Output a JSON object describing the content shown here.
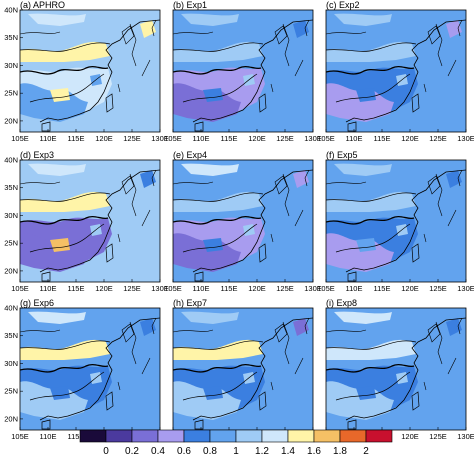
{
  "chart_data": {
    "type": "heatmap",
    "panels": [
      {
        "label": "(a) APHRO"
      },
      {
        "label": "(b) Exp1"
      },
      {
        "label": "(c) Exp2"
      },
      {
        "label": "(d) Exp3"
      },
      {
        "label": "(e) Exp4"
      },
      {
        "label": "(f) Exp5"
      },
      {
        "label": "(g) Exp6"
      },
      {
        "label": "(h) Exp7"
      },
      {
        "label": "(i) Exp8"
      }
    ],
    "x_ticks": [
      "105E",
      "110E",
      "115E",
      "120E",
      "125E",
      "130E"
    ],
    "y_ticks": [
      "20N",
      "25N",
      "30N",
      "35N",
      "40N"
    ],
    "xlim": [
      105,
      130
    ],
    "ylim": [
      18,
      40
    ],
    "colorbar": {
      "labels": [
        "0",
        "0.2",
        "0.4",
        "0.6",
        "0.8",
        "1",
        "1.2",
        "1.4",
        "1.6",
        "1.8",
        "2"
      ],
      "colors": [
        "#1a0a3a",
        "#4b3a9e",
        "#7a6fd6",
        "#a89cef",
        "#3b7fe0",
        "#62a3ee",
        "#9fcbf5",
        "#cfe7fb",
        "#fff4a8",
        "#f5c065",
        "#e8682a",
        "#c8102e"
      ]
    }
  }
}
